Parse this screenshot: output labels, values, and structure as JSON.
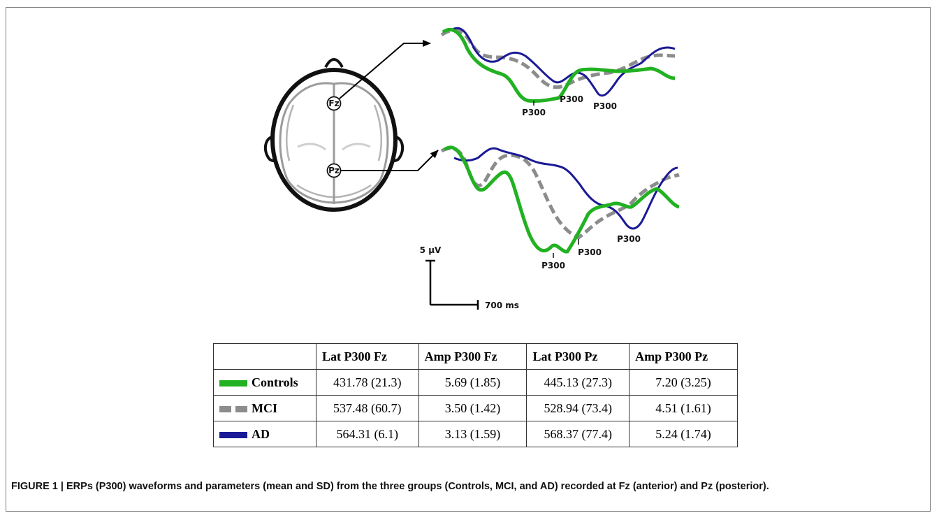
{
  "figure": {
    "electrodes": {
      "fz": "Fz",
      "pz": "Pz"
    },
    "peak_label": "P300",
    "scale_bar": {
      "amplitude_label": "5 µV",
      "time_label": "700 ms"
    },
    "series_colors": {
      "Controls": "#22b122",
      "MCI": "#8c8c8c",
      "AD": "#1a1a96"
    }
  },
  "table": {
    "headers": [
      "",
      "Lat P300 Fz",
      "Amp P300 Fz",
      "Lat P300 Pz",
      "Amp P300 Pz"
    ],
    "rows": [
      {
        "group": "Controls",
        "swatch": "solid",
        "color": "#22b122",
        "values": [
          "431.78 (21.3)",
          "5.69 (1.85)",
          "445.13 (27.3)",
          "7.20 (3.25)"
        ]
      },
      {
        "group": "MCI",
        "swatch": "dashed",
        "color": "#8c8c8c",
        "values": [
          "537.48 (60.7)",
          "3.50 (1.42)",
          "528.94 (73.4)",
          "4.51 (1.61)"
        ]
      },
      {
        "group": "AD",
        "swatch": "solid",
        "color": "#1a1a96",
        "values": [
          "564.31 (6.1)",
          "3.13 (1.59)",
          "568.37 (77.4)",
          "5.24 (1.74)"
        ]
      }
    ]
  },
  "caption": {
    "label": "FIGURE 1 | ",
    "text": "ERPs (P300) waveforms and parameters (mean and SD) from the three groups (Controls, MCI, and AD) recorded at Fz (anterior) and Pz (posterior)."
  }
}
